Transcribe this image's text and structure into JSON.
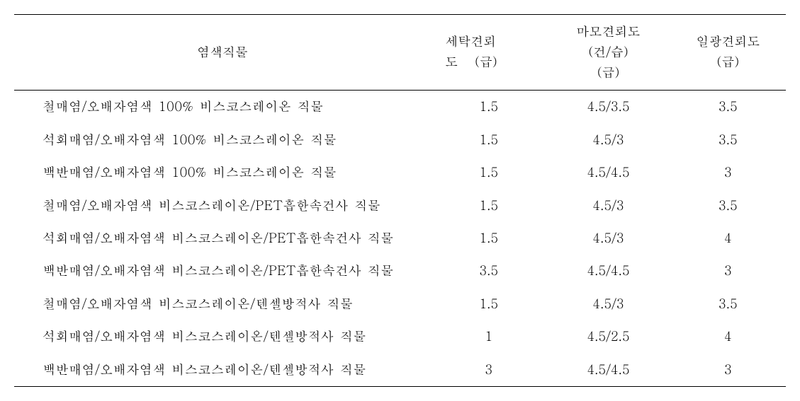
{
  "table": {
    "headers": {
      "col1": "염색직물",
      "col2_line1": "세탁견뢰",
      "col2_line2": "도    (급)",
      "col3_line1": "마모견뢰도",
      "col3_line2": "(건/습)",
      "col3_line3": "(급)",
      "col4_line1": "일광견뢰도",
      "col4_line2": "(급)"
    },
    "rows": [
      {
        "label": "철매염/오배자염색 100% 비스코스레이온 직물",
        "wash": "1.5",
        "abrasion": "4.5/3.5",
        "light": "3.5"
      },
      {
        "label": "석회매염/오배자염색 100% 비스코스레이온 직물",
        "wash": "1.5",
        "abrasion": "4.5/3",
        "light": "3.5"
      },
      {
        "label": "백반매염/오배자염색 100% 비스코스레이온 직물",
        "wash": "1.5",
        "abrasion": "4.5/4.5",
        "light": "3"
      },
      {
        "label": "철매염/오배자염색 비스코스레이온/PET흡한속건사 직물",
        "wash": "1.5",
        "abrasion": "4.5/3",
        "light": "3.5"
      },
      {
        "label": "석회매염/오배자염색 비스코스레이온/PET흡한속건사 직물",
        "wash": "1.5",
        "abrasion": "4.5/3",
        "light": "4"
      },
      {
        "label": "백반매염/오배자염색 비스코스레이온/PET흡한속건사 직물",
        "wash": "3.5",
        "abrasion": "4.5/4.5",
        "light": "3"
      },
      {
        "label": "철매염/오배자염색 비스코스레이온/텐셀방적사 직물",
        "wash": "1.5",
        "abrasion": "4.5/3",
        "light": "3.5"
      },
      {
        "label": "석회매염/오배자염색 비스코스레이온/텐셀방적사 직물",
        "wash": "1",
        "abrasion": "4.5/2.5",
        "light": "4"
      },
      {
        "label": "백반매염/오배자염색 비스코스레이온/텐셀방적사 직물",
        "wash": "3",
        "abrasion": "4.5/4.5",
        "light": "3"
      }
    ]
  }
}
